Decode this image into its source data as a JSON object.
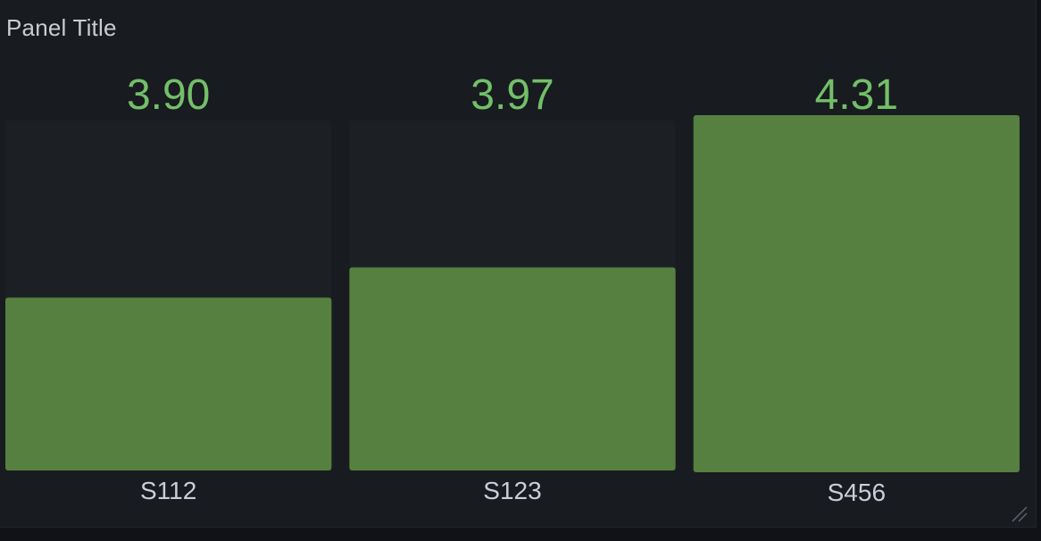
{
  "panel": {
    "title": "Panel Title"
  },
  "colors": {
    "track": "#1c2024",
    "bar": "#56803f",
    "value_text": "#73bf69"
  },
  "chart_data": {
    "type": "bar",
    "categories": [
      "S112",
      "S123",
      "S456"
    ],
    "values": [
      3.9,
      3.97,
      4.31
    ],
    "value_labels": [
      "3.90",
      "3.97",
      "4.31"
    ],
    "ylim": [
      3.5,
      4.31
    ],
    "grid": false,
    "legend": "none"
  }
}
